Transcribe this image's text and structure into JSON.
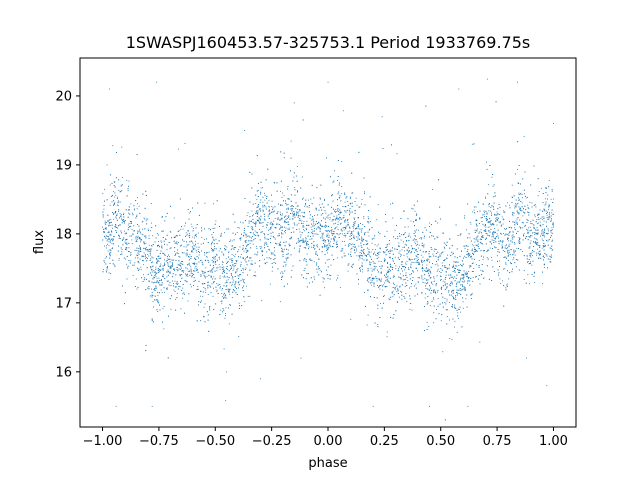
{
  "chart_data": {
    "type": "scatter",
    "title": "1SWASPJ160453.57-325753.1 Period 1933769.75s",
    "xlabel": "phase",
    "ylabel": "flux",
    "xlim": [
      -1.1,
      1.1
    ],
    "ylim": [
      15.2,
      20.55
    ],
    "xticks": [
      -1.0,
      -0.75,
      -0.5,
      -0.25,
      0.0,
      0.25,
      0.5,
      0.75,
      1.0
    ],
    "xtick_labels": [
      "−1.00",
      "−0.75",
      "−0.50",
      "−0.25",
      "0.00",
      "0.25",
      "0.50",
      "0.75",
      "1.00"
    ],
    "yticks": [
      16,
      17,
      18,
      19,
      20
    ],
    "ytick_labels": [
      "16",
      "17",
      "18",
      "19",
      "20"
    ],
    "grid": false,
    "legend": false,
    "point_color": "#1f77b4",
    "series": [
      {
        "x_range": [
          -1.0,
          1.0
        ],
        "baseline": 17.85,
        "typical_range": [
          17.0,
          18.7
        ],
        "points": [
          [
            -1.0,
            18.1
          ],
          [
            -0.98,
            17.9
          ],
          [
            -0.95,
            18.3
          ],
          [
            -0.9,
            18.0
          ],
          [
            -0.85,
            17.9
          ],
          [
            -0.8,
            17.7
          ],
          [
            -0.77,
            17.3
          ],
          [
            -0.75,
            17.6
          ],
          [
            -0.7,
            17.5
          ],
          [
            -0.65,
            17.6
          ],
          [
            -0.6,
            17.8
          ],
          [
            -0.55,
            17.4
          ],
          [
            -0.5,
            17.6
          ],
          [
            -0.45,
            17.3
          ],
          [
            -0.4,
            17.5
          ],
          [
            -0.35,
            17.9
          ],
          [
            -0.3,
            18.2
          ],
          [
            -0.25,
            18.1
          ],
          [
            -0.2,
            18.0
          ],
          [
            -0.15,
            18.3
          ],
          [
            -0.1,
            17.9
          ],
          [
            -0.05,
            18.0
          ],
          [
            0.0,
            18.0
          ],
          [
            0.05,
            18.2
          ],
          [
            0.1,
            18.0
          ],
          [
            0.15,
            17.9
          ],
          [
            0.2,
            17.6
          ],
          [
            0.23,
            17.2
          ],
          [
            0.25,
            17.6
          ],
          [
            0.3,
            17.5
          ],
          [
            0.35,
            17.6
          ],
          [
            0.4,
            17.7
          ],
          [
            0.45,
            17.4
          ],
          [
            0.5,
            17.5
          ],
          [
            0.55,
            17.3
          ],
          [
            0.6,
            17.4
          ],
          [
            0.65,
            17.8
          ],
          [
            0.7,
            18.1
          ],
          [
            0.75,
            18.0
          ],
          [
            0.8,
            17.9
          ],
          [
            0.85,
            18.2
          ],
          [
            0.9,
            17.9
          ],
          [
            0.95,
            18.0
          ],
          [
            1.0,
            18.1
          ],
          [
            -0.98,
            19.0
          ],
          [
            -0.97,
            20.1
          ],
          [
            -0.94,
            15.5
          ],
          [
            -0.78,
            15.5
          ],
          [
            -0.76,
            20.2
          ],
          [
            -0.45,
            16.0
          ],
          [
            -0.37,
            19.5
          ],
          [
            -0.3,
            15.9
          ],
          [
            -0.15,
            19.9
          ],
          [
            -0.12,
            16.2
          ],
          [
            0.0,
            20.2
          ],
          [
            0.2,
            15.5
          ],
          [
            0.24,
            19.7
          ],
          [
            0.45,
            15.5
          ],
          [
            0.58,
            20.1
          ],
          [
            0.62,
            15.5
          ],
          [
            0.64,
            19.3
          ],
          [
            0.84,
            20.2
          ],
          [
            0.88,
            16.2
          ],
          [
            0.97,
            15.8
          ],
          [
            1.0,
            19.6
          ]
        ]
      }
    ]
  }
}
